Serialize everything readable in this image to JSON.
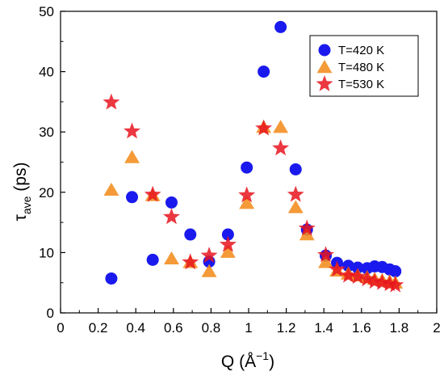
{
  "chart_data": {
    "type": "scatter",
    "title": "",
    "xlabel": {
      "main": "Q (Å",
      "sup": "−1",
      "tail": ")"
    },
    "ylabel": {
      "main": "τ",
      "sub": "ave",
      "tail": " (ps)"
    },
    "xlim": [
      0,
      2
    ],
    "ylim": [
      0,
      50
    ],
    "xticks": [
      0,
      0.2,
      0.4,
      0.6,
      0.8,
      1,
      1.2,
      1.4,
      1.6,
      1.8,
      2
    ],
    "xtick_labels": [
      "0",
      "0.2",
      "0.4",
      "0.6",
      "0.8",
      "1",
      "1.2",
      "1.4",
      "1.6",
      "1.8",
      "2"
    ],
    "yticks": [
      0,
      10,
      20,
      30,
      40,
      50
    ],
    "ytick_labels": [
      "0",
      "10",
      "20",
      "30",
      "40",
      "50"
    ],
    "grid": false,
    "legend_position": "top-right",
    "series": [
      {
        "name": "T=420 K",
        "marker": "circle",
        "color": "#1a1aee",
        "x": [
          0.27,
          0.38,
          0.49,
          0.59,
          0.69,
          0.79,
          0.89,
          0.99,
          1.08,
          1.17,
          1.25,
          1.31,
          1.41,
          1.47,
          1.53,
          1.58,
          1.63,
          1.67,
          1.71,
          1.75,
          1.78
        ],
        "y": [
          5.7,
          19.2,
          8.8,
          18.3,
          13.0,
          8.5,
          13.0,
          24.1,
          40.0,
          47.4,
          23.8,
          13.8,
          9.5,
          8.3,
          7.8,
          7.5,
          7.4,
          7.7,
          7.6,
          7.2,
          6.9
        ]
      },
      {
        "name": "T=480 K",
        "marker": "triangle",
        "color": "#f28c1c",
        "x": [
          0.27,
          0.38,
          0.49,
          0.59,
          0.69,
          0.79,
          0.89,
          0.99,
          1.08,
          1.17,
          1.25,
          1.31,
          1.41,
          1.47,
          1.53,
          1.58,
          1.63,
          1.67,
          1.71,
          1.75,
          1.78
        ],
        "y": [
          20.4,
          25.8,
          19.5,
          9.0,
          8.4,
          6.9,
          10.1,
          18.2,
          30.8,
          30.8,
          17.5,
          13.0,
          8.4,
          7.0,
          6.5,
          6.2,
          5.9,
          5.6,
          5.4,
          5.2,
          5.0
        ]
      },
      {
        "name": "T=530 K",
        "marker": "star",
        "color": "#e8141e",
        "x": [
          0.27,
          0.38,
          0.49,
          0.59,
          0.69,
          0.79,
          0.89,
          0.99,
          1.08,
          1.17,
          1.25,
          1.31,
          1.41,
          1.47,
          1.53,
          1.58,
          1.63,
          1.67,
          1.71,
          1.75,
          1.78
        ],
        "y": [
          34.9,
          30.1,
          19.6,
          15.9,
          8.4,
          9.5,
          11.3,
          19.5,
          30.6,
          27.3,
          19.6,
          14.0,
          9.6,
          7.2,
          6.2,
          6.0,
          5.6,
          5.2,
          5.0,
          4.8,
          4.6
        ]
      }
    ]
  }
}
